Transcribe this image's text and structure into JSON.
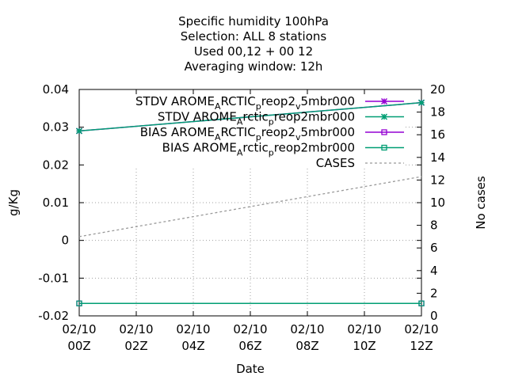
{
  "chart_data": {
    "type": "line",
    "title": [
      "Specific humidity 100hPa",
      "Selection: ALL      8 stations",
      "Used  00,12  + 00 12",
      "Averaging window: 12h"
    ],
    "xlabel": "Date",
    "ylabel": "g/Kg",
    "y2label": "No cases",
    "x_ticks": [
      {
        "date": "02/10",
        "hour": "00Z",
        "x": 0
      },
      {
        "date": "02/10",
        "hour": "02Z",
        "x": 2
      },
      {
        "date": "02/10",
        "hour": "04Z",
        "x": 4
      },
      {
        "date": "02/10",
        "hour": "06Z",
        "x": 6
      },
      {
        "date": "02/10",
        "hour": "08Z",
        "x": 8
      },
      {
        "date": "02/10",
        "hour": "10Z",
        "x": 10
      },
      {
        "date": "02/10",
        "hour": "12Z",
        "x": 12
      }
    ],
    "xlim": [
      0,
      12
    ],
    "ylim": [
      -0.02,
      0.04
    ],
    "y_ticks": [
      "0.04",
      "0.03",
      "0.02",
      "0.01",
      "0",
      "-0.01",
      "-0.02"
    ],
    "y2lim": [
      0,
      20
    ],
    "y2_ticks": [
      "20",
      "18",
      "16",
      "14",
      "12",
      "10",
      "8",
      "6",
      "4",
      "2",
      "0"
    ],
    "grid": true,
    "legend_position": "top-right",
    "series": [
      {
        "name": "STDV AROME_ARCTIC_preop2_v5mbr000",
        "legend": [
          [
            "STDV AROME",
            ""
          ],
          [
            "A",
            "sub"
          ],
          [
            "RCTIC",
            ""
          ],
          [
            "p",
            "sub"
          ],
          [
            "reop2",
            ""
          ],
          [
            "v",
            "sub"
          ],
          [
            "5mbr000",
            ""
          ]
        ],
        "color": "#9400d3",
        "marker": "star",
        "axis": "y1",
        "x": [
          0,
          12
        ],
        "y": [
          0.029,
          0.0365
        ]
      },
      {
        "name": "STDV AROME_Arctic_preop2mbr000",
        "legend": [
          [
            "STDV AROME",
            ""
          ],
          [
            "A",
            "sub"
          ],
          [
            "rctic",
            ""
          ],
          [
            "p",
            "sub"
          ],
          [
            "reop2mbr000",
            ""
          ]
        ],
        "color": "#009e73",
        "marker": "star",
        "axis": "y1",
        "x": [
          0,
          12
        ],
        "y": [
          0.029,
          0.0365
        ]
      },
      {
        "name": "BIAS AROME_ARCTIC_preop2_v5mbr000",
        "legend": [
          [
            "BIAS AROME",
            ""
          ],
          [
            "A",
            "sub"
          ],
          [
            "RCTIC",
            ""
          ],
          [
            "p",
            "sub"
          ],
          [
            "reop2",
            ""
          ],
          [
            "v",
            "sub"
          ],
          [
            "5mbr000",
            ""
          ]
        ],
        "color": "#9400d3",
        "marker": "square",
        "axis": "y1",
        "x": [
          0,
          12
        ],
        "y": [
          -0.0167,
          -0.0167
        ]
      },
      {
        "name": "BIAS AROME_Arctic_preop2mbr000",
        "legend": [
          [
            "BIAS AROME",
            ""
          ],
          [
            "A",
            "sub"
          ],
          [
            "rctic",
            ""
          ],
          [
            "p",
            "sub"
          ],
          [
            "reop2mbr000",
            ""
          ]
        ],
        "color": "#009e73",
        "marker": "square",
        "axis": "y1",
        "x": [
          0,
          12
        ],
        "y": [
          -0.0167,
          -0.0167
        ]
      },
      {
        "name": "CASES",
        "legend": [
          [
            "CASES",
            ""
          ]
        ],
        "color": "#999999",
        "marker": "none",
        "dash": true,
        "axis": "y2",
        "x": [
          0,
          12
        ],
        "y": [
          7,
          12.3
        ]
      }
    ]
  }
}
